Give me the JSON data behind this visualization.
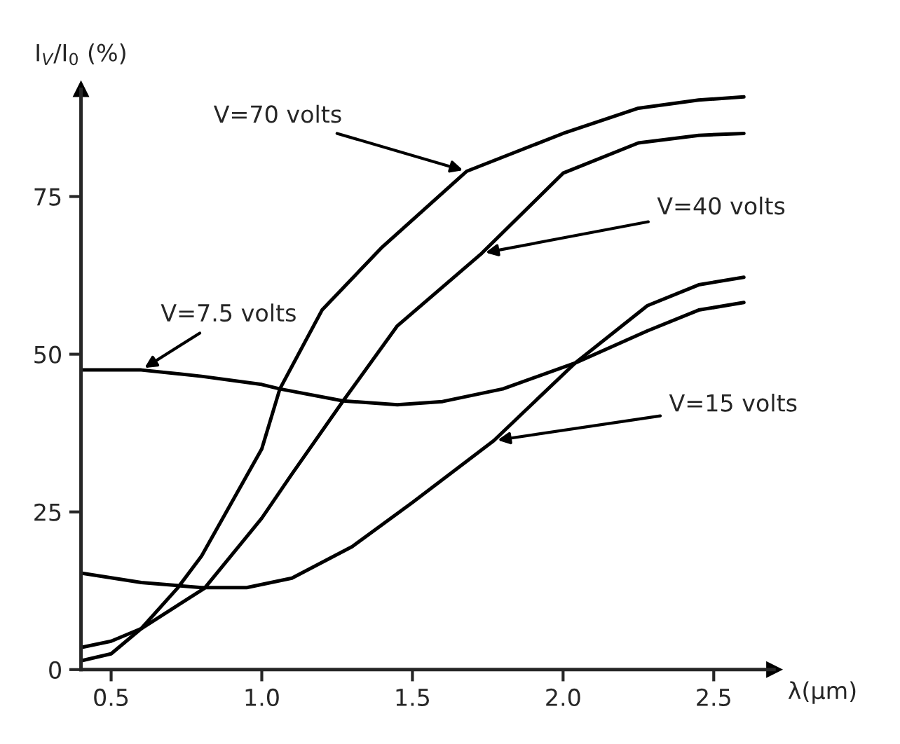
{
  "chart_data": {
    "type": "line",
    "xlabel": "λ(μm)",
    "ylabel": "I$_{V}$/I$_{0}$ (%)",
    "xlim": [
      0.4,
      2.7
    ],
    "ylim": [
      0,
      92
    ],
    "xticks": [
      {
        "value": 0.5,
        "label": "0.5"
      },
      {
        "value": 1.0,
        "label": "1.0"
      },
      {
        "value": 1.5,
        "label": "1.5"
      },
      {
        "value": 2.0,
        "label": "2.0"
      },
      {
        "value": 2.5,
        "label": "2.5"
      }
    ],
    "yticks": [
      0,
      25,
      50,
      75
    ],
    "grid": false,
    "legend": false,
    "marker": "none",
    "line_style": "solid",
    "series": [
      {
        "color": "#000000",
        "x": [
          0.4,
          0.5,
          0.6,
          0.72,
          0.8,
          1.0,
          1.06,
          1.2,
          1.4,
          1.68,
          2.0,
          2.25,
          2.45,
          2.6
        ],
        "values": [
          1.4,
          2.5,
          6.5,
          12.9,
          18,
          35,
          44.5,
          57,
          67,
          79,
          85,
          89,
          90.3,
          90.8
        ]
      },
      {
        "color": "#000000",
        "x": [
          0.4,
          0.5,
          0.6,
          0.81,
          1.0,
          1.1,
          1.27,
          1.45,
          1.73,
          2.0,
          2.25,
          2.45,
          2.6
        ],
        "values": [
          3.5,
          4.5,
          6.5,
          12.9,
          24,
          31,
          42.6,
          54.5,
          66,
          78.7,
          83.5,
          84.7,
          85
        ]
      },
      {
        "color": "#000000",
        "x": [
          0.4,
          0.6,
          0.8,
          1.0,
          1.06,
          1.27,
          1.45,
          1.6,
          1.8,
          2.04,
          2.28,
          2.45,
          2.6
        ],
        "values": [
          47.5,
          47.5,
          46.5,
          45.2,
          44.5,
          42.6,
          42,
          42.5,
          44.5,
          48.6,
          53.7,
          57,
          58.2
        ]
      },
      {
        "color": "#000000",
        "x": [
          0.4,
          0.6,
          0.8,
          0.95,
          1.1,
          1.3,
          1.5,
          1.77,
          2.04,
          2.28,
          2.45,
          2.6
        ],
        "values": [
          15.3,
          13.8,
          13,
          13,
          14.5,
          19.5,
          26.5,
          36.3,
          48.6,
          57.7,
          61,
          62.2
        ]
      }
    ],
    "annotations": [
      {
        "text": "V=70 volts",
        "x": 1.68,
        "y": 79
      },
      {
        "text": "V=40 volts",
        "x": 1.73,
        "y": 66
      },
      {
        "text": "V=7.5 volts",
        "x": 0.6,
        "y": 47.5
      },
      {
        "text": "V=15 volts",
        "x": 1.77,
        "y": 36.3
      }
    ]
  }
}
